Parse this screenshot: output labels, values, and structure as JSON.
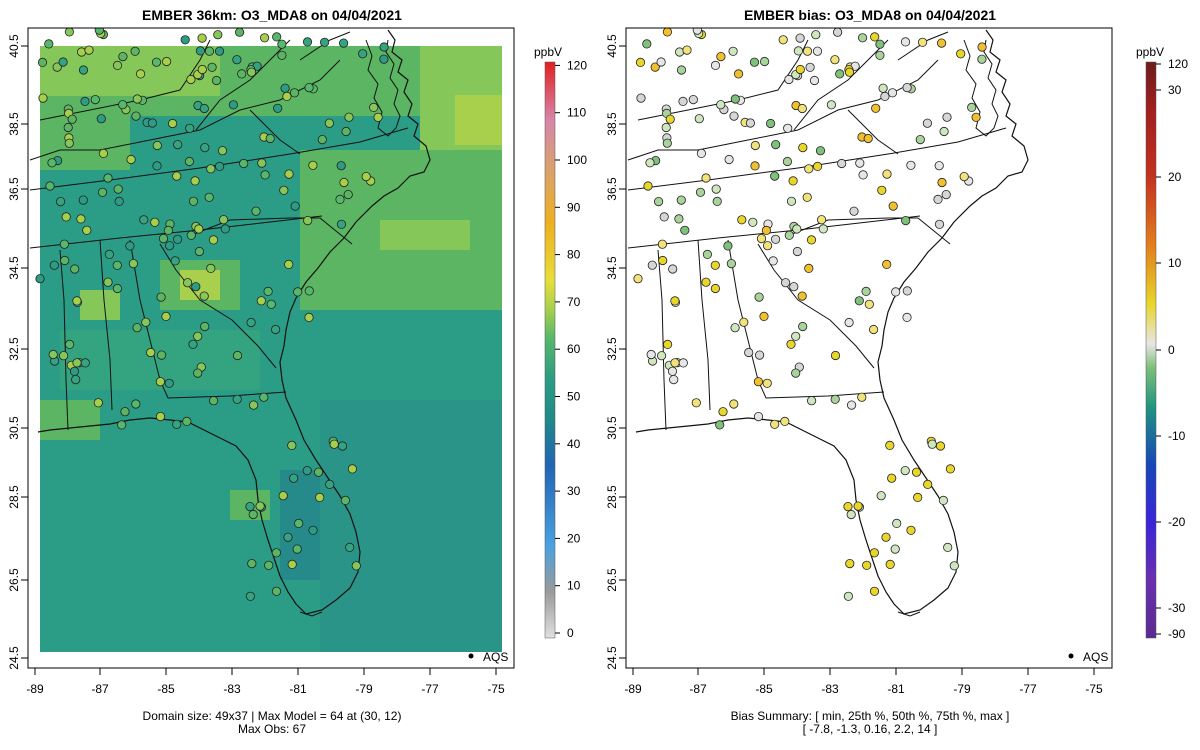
{
  "left_panel": {
    "title": "EMBER 36km: O3_MDA8 on 04/04/2021",
    "footer_line1": "Domain size: 49x37 | Max Model = 64 at (30, 12)",
    "footer_line2": "Max Obs: 67",
    "legend_label": "AQS",
    "colorbar": {
      "unit": "ppbV",
      "ticks": [
        "0",
        "10",
        "20",
        "30",
        "40",
        "50",
        "60",
        "70",
        "80",
        "90",
        "100",
        "110",
        "120"
      ],
      "colors": [
        "#d4d4d4",
        "#9a9a9a",
        "#3a8fd8",
        "#2065b4",
        "#1f7d86",
        "#2c9c84",
        "#55b86a",
        "#a6d04c",
        "#e6df3a",
        "#eeb020",
        "#e49820",
        "#d884aa",
        "#e23030"
      ]
    }
  },
  "right_panel": {
    "title": "EMBER bias: O3_MDA8 on 04/04/2021",
    "footer_line1": "Bias Summary: [ min, 25th %, 50th %, 75th %, max ]",
    "footer_line2": "[ -7.8,   -1.3,   0.16,   2.2,   14 ]",
    "legend_label": "AQS",
    "colorbar": {
      "unit": "ppbV",
      "ticks": [
        "30",
        "20",
        "10",
        "0",
        "-10",
        "-20",
        "-30"
      ],
      "end_ticks": [
        "120",
        "-90"
      ],
      "colors": [
        "#6e1d1d",
        "#c5321e",
        "#e2801c",
        "#e8d62c",
        "#e6e6e6",
        "#7fc07a",
        "#1f9480",
        "#1846b8",
        "#3a25d8",
        "#6a2fb0"
      ]
    }
  },
  "axes": {
    "x_ticks": [
      "-89",
      "-87",
      "-85",
      "-83",
      "-81",
      "-79",
      "-77",
      "-75"
    ],
    "y_ticks": [
      "40.5",
      "38.5",
      "36.5",
      "34.5",
      "32.5",
      "30.5",
      "28.5",
      "26.5",
      "24.5"
    ],
    "xlim": [
      -89.2,
      -74.8
    ],
    "ylim": [
      24.3,
      40.8
    ]
  },
  "map_colors": {
    "teal": "#2b9c86",
    "blueteal": "#268a8a",
    "green": "#5bb563",
    "lightgreen": "#86c75a",
    "yellowgreen": "#a8d04d",
    "border": "#111111"
  }
}
